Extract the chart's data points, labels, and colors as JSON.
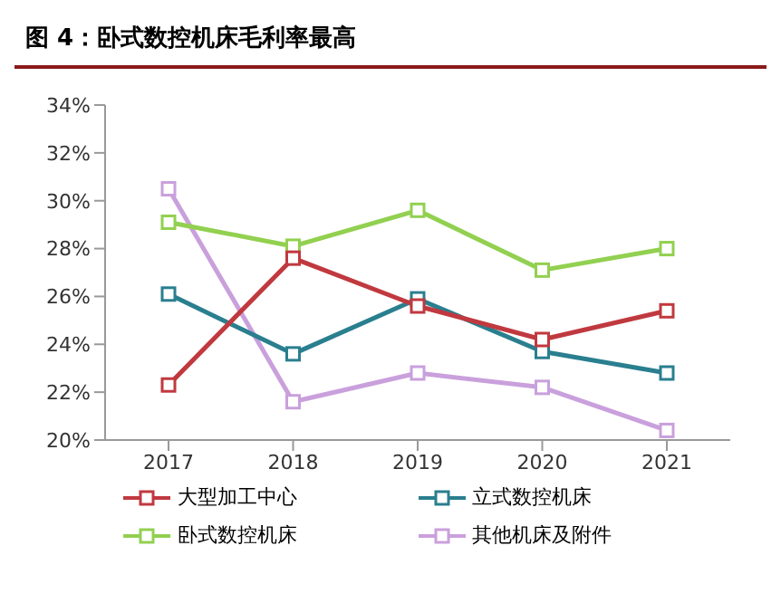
{
  "chart_data": {
    "type": "line",
    "title": "图 4：卧式数控机床毛利率最高",
    "categories": [
      "2017",
      "2018",
      "2019",
      "2020",
      "2021"
    ],
    "series": [
      {
        "name": "大型加工中心",
        "color": "#c0393f",
        "values": [
          22.3,
          27.6,
          25.6,
          24.2,
          25.4
        ]
      },
      {
        "name": "立式数控机床",
        "color": "#2a7f8f",
        "values": [
          26.1,
          23.6,
          25.9,
          23.7,
          22.8
        ]
      },
      {
        "name": "卧式数控机床",
        "color": "#92d050",
        "values": [
          29.1,
          28.1,
          29.6,
          27.1,
          28.0
        ]
      },
      {
        "name": "其他机床及附件",
        "color": "#c9a0dc",
        "values": [
          30.5,
          21.6,
          22.8,
          22.2,
          20.4
        ]
      }
    ],
    "ylim": [
      20,
      34
    ],
    "yticks": [
      {
        "value": 20,
        "label": "20%"
      },
      {
        "value": 22,
        "label": "22%"
      },
      {
        "value": 24,
        "label": "24%"
      },
      {
        "value": 26,
        "label": "26%"
      },
      {
        "value": 28,
        "label": "28%"
      },
      {
        "value": 30,
        "label": "30%"
      },
      {
        "value": 32,
        "label": "32%"
      },
      {
        "value": 34,
        "label": "34%"
      }
    ],
    "grid": false,
    "legend": "bottom",
    "marker": "square",
    "line_style": "solid"
  }
}
